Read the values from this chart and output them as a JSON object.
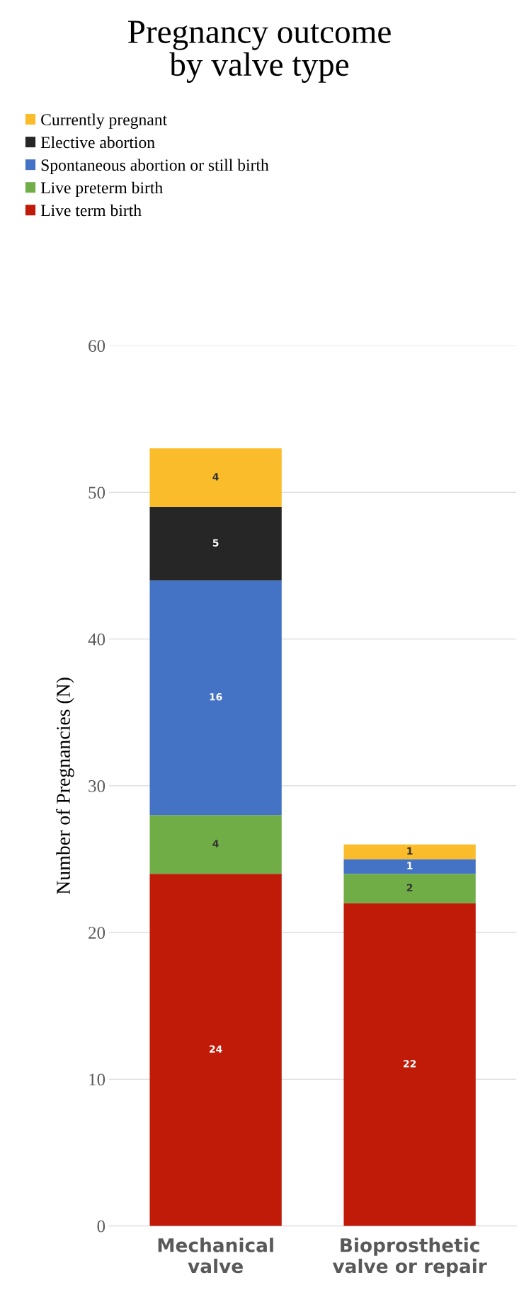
{
  "chart_data": {
    "type": "bar",
    "title": "Pregnancy outcome\nby valve type",
    "ylabel": "Number of Pregnancies (N)",
    "categories": [
      "Mechanical\nvalve",
      "Bioprosthetic\nvalve or repair"
    ],
    "stacked": true,
    "ylim": [
      0,
      60
    ],
    "yticks": [
      0,
      10,
      20,
      30,
      40,
      50,
      60
    ],
    "grid": "y",
    "legend": "top",
    "series": [
      {
        "name": "Live term birth",
        "color": "#c01a08",
        "values": [
          24,
          22
        ],
        "value_labels": [
          "24",
          "22"
        ]
      },
      {
        "name": "Live preterm birth",
        "color": "#70ad47",
        "values": [
          4,
          2
        ],
        "value_labels": [
          "4",
          "2"
        ]
      },
      {
        "name": "Spontaneous abortion or still birth",
        "color": "#4472c4",
        "values": [
          16,
          1
        ],
        "value_labels": [
          "16",
          "1"
        ]
      },
      {
        "name": "Elective abortion",
        "color": "#262626",
        "values": [
          5,
          0
        ],
        "value_labels": [
          "5",
          null
        ]
      },
      {
        "name": "Currently pregnant",
        "color": "#fbbc2b",
        "values": [
          4,
          1
        ],
        "value_labels": [
          "4",
          "1"
        ]
      }
    ]
  }
}
